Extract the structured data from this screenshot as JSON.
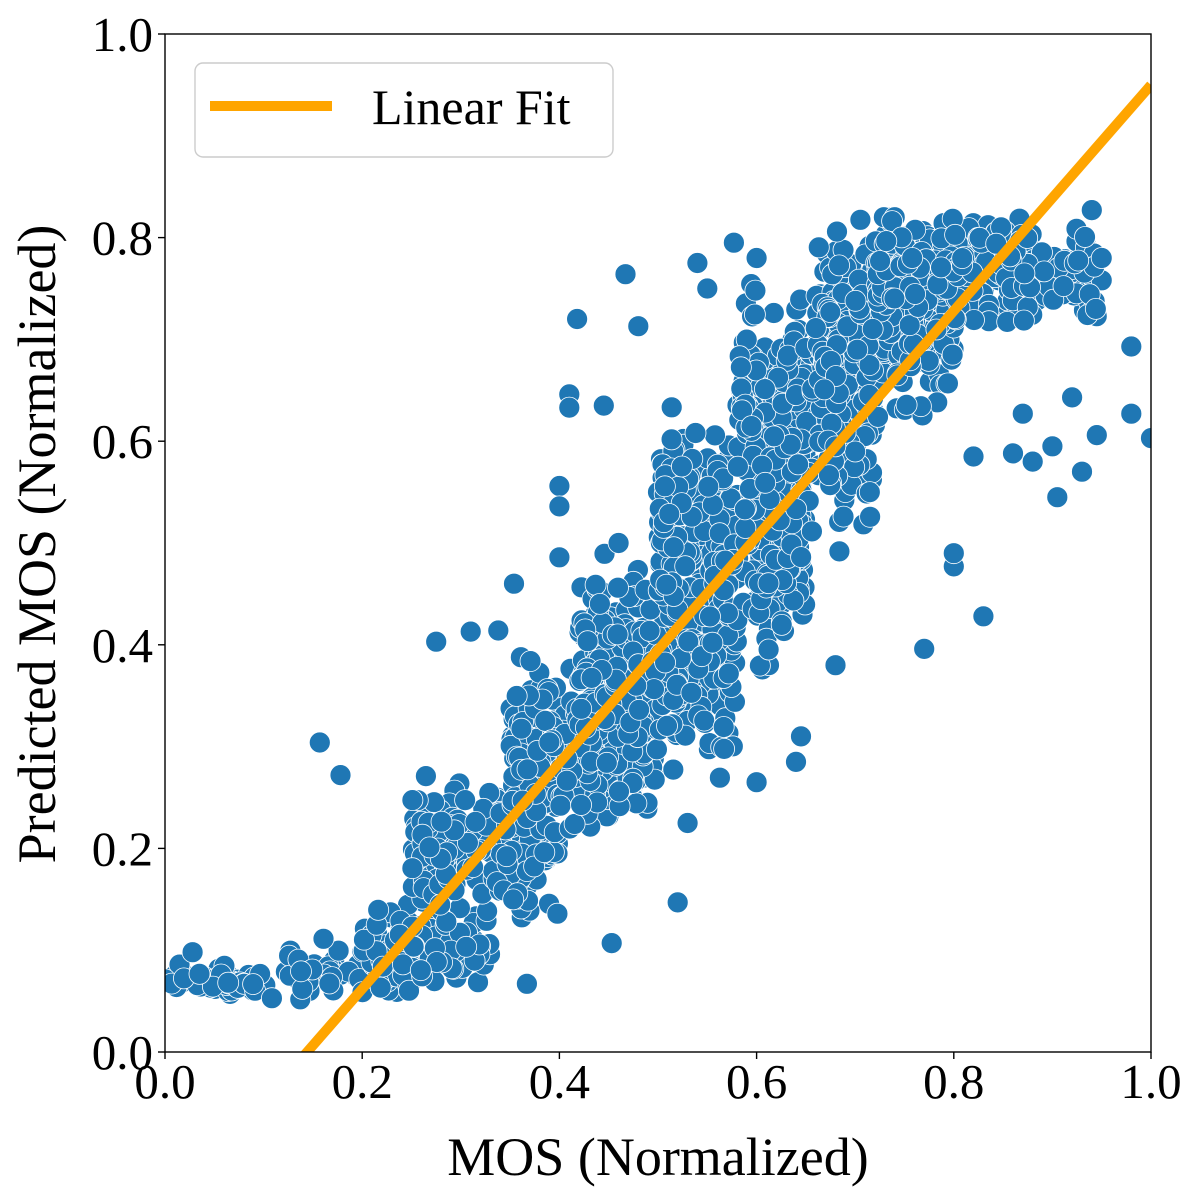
{
  "chart_data": {
    "type": "scatter",
    "title": "",
    "xlabel": "MOS (Normalized)",
    "ylabel": "Predicted MOS (Normalized)",
    "xlim": [
      0.0,
      1.0
    ],
    "ylim": [
      0.0,
      1.0
    ],
    "x_ticks": [
      "0.0",
      "0.2",
      "0.4",
      "0.6",
      "0.8",
      "1.0"
    ],
    "y_ticks": [
      "0.0",
      "0.2",
      "0.4",
      "0.6",
      "0.8",
      "1.0"
    ],
    "grid": false,
    "legend": {
      "position": "top-left",
      "entries": [
        "Linear Fit"
      ]
    },
    "colors": {
      "points": "#1f77b4",
      "point_edge": "#ffffff",
      "fit_line": "#ffa500"
    },
    "fit_line": {
      "name": "Linear Fit",
      "slope": 1.11,
      "intercept": -0.16
    },
    "point_groups": [
      {
        "x_range": [
          0.0,
          0.12
        ],
        "y_center": 0.068,
        "y_spread": 0.012,
        "count": 55
      },
      {
        "x_range": [
          0.12,
          0.25
        ],
        "y_center": 0.08,
        "y_spread": 0.025,
        "count": 45
      },
      {
        "x_range": [
          0.2,
          0.33
        ],
        "y_center": 0.1,
        "y_spread": 0.04,
        "count": 130
      },
      {
        "x_range": [
          0.25,
          0.4
        ],
        "y_center": 0.2,
        "y_spread": 0.06,
        "count": 220
      },
      {
        "x_range": [
          0.35,
          0.5
        ],
        "y_center": 0.3,
        "y_spread": 0.07,
        "count": 300
      },
      {
        "x_range": [
          0.42,
          0.58
        ],
        "y_center": 0.38,
        "y_spread": 0.09,
        "count": 320
      },
      {
        "x_range": [
          0.5,
          0.65
        ],
        "y_center": 0.5,
        "y_spread": 0.1,
        "count": 320
      },
      {
        "x_range": [
          0.58,
          0.72
        ],
        "y_center": 0.62,
        "y_spread": 0.1,
        "count": 300
      },
      {
        "x_range": [
          0.66,
          0.8
        ],
        "y_center": 0.72,
        "y_spread": 0.08,
        "count": 300
      },
      {
        "x_range": [
          0.72,
          0.88
        ],
        "y_center": 0.77,
        "y_spread": 0.05,
        "count": 300
      },
      {
        "x_range": [
          0.85,
          0.95
        ],
        "y_center": 0.76,
        "y_spread": 0.04,
        "count": 70
      }
    ],
    "outliers": [
      {
        "x": 0.157,
        "y": 0.304
      },
      {
        "x": 0.178,
        "y": 0.272
      },
      {
        "x": 0.028,
        "y": 0.098
      },
      {
        "x": 0.275,
        "y": 0.403
      },
      {
        "x": 0.31,
        "y": 0.413
      },
      {
        "x": 0.338,
        "y": 0.414
      },
      {
        "x": 0.354,
        "y": 0.46
      },
      {
        "x": 0.418,
        "y": 0.72
      },
      {
        "x": 0.467,
        "y": 0.764
      },
      {
        "x": 0.48,
        "y": 0.713
      },
      {
        "x": 0.41,
        "y": 0.646
      },
      {
        "x": 0.41,
        "y": 0.633
      },
      {
        "x": 0.445,
        "y": 0.635
      },
      {
        "x": 0.4,
        "y": 0.556
      },
      {
        "x": 0.4,
        "y": 0.536
      },
      {
        "x": 0.4,
        "y": 0.486
      },
      {
        "x": 0.46,
        "y": 0.5
      },
      {
        "x": 0.52,
        "y": 0.147
      },
      {
        "x": 0.453,
        "y": 0.107
      },
      {
        "x": 0.367,
        "y": 0.067
      },
      {
        "x": 0.77,
        "y": 0.396
      },
      {
        "x": 0.83,
        "y": 0.428
      },
      {
        "x": 0.8,
        "y": 0.477
      },
      {
        "x": 0.8,
        "y": 0.49
      },
      {
        "x": 0.98,
        "y": 0.693
      },
      {
        "x": 0.98,
        "y": 0.627
      },
      {
        "x": 1.0,
        "y": 0.603
      },
      {
        "x": 0.945,
        "y": 0.606
      },
      {
        "x": 0.93,
        "y": 0.57
      },
      {
        "x": 0.905,
        "y": 0.545
      },
      {
        "x": 0.94,
        "y": 0.827
      },
      {
        "x": 0.944,
        "y": 0.73
      },
      {
        "x": 0.95,
        "y": 0.78
      },
      {
        "x": 0.9,
        "y": 0.595
      },
      {
        "x": 0.92,
        "y": 0.643
      },
      {
        "x": 0.87,
        "y": 0.627
      },
      {
        "x": 0.86,
        "y": 0.588
      },
      {
        "x": 0.88,
        "y": 0.58
      },
      {
        "x": 0.82,
        "y": 0.585
      },
      {
        "x": 0.6,
        "y": 0.78
      },
      {
        "x": 0.577,
        "y": 0.795
      },
      {
        "x": 0.54,
        "y": 0.775
      },
      {
        "x": 0.55,
        "y": 0.75
      },
      {
        "x": 0.68,
        "y": 0.38
      },
      {
        "x": 0.64,
        "y": 0.285
      },
      {
        "x": 0.645,
        "y": 0.31
      },
      {
        "x": 0.6,
        "y": 0.265
      },
      {
        "x": 0.53,
        "y": 0.225
      }
    ]
  }
}
